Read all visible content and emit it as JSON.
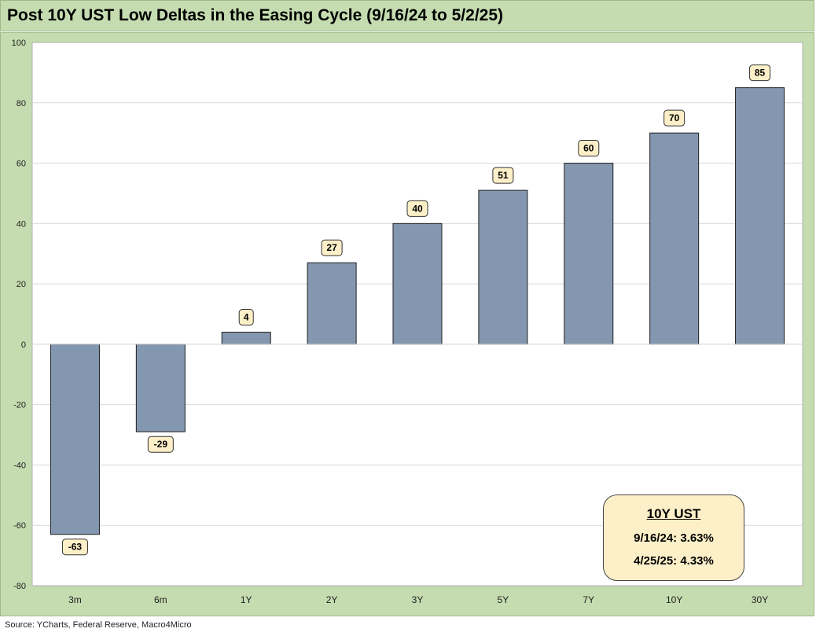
{
  "title": "Post 10Y UST Low Deltas in the Easing Cycle (9/16/24 to 5/2/25)",
  "source": "Source: YCharts, Federal Reserve, Macro4Micro",
  "annotation": {
    "title": "10Y UST",
    "line1": "9/16/24: 3.63%",
    "line2": "4/25/25: 4.33%"
  },
  "colors": {
    "background": "#c4dcb0",
    "plot_area": "#ffffff",
    "bar_fill": "#8497b0",
    "bar_stroke": "#1f1f1f",
    "label_box": "#fdf0c8"
  },
  "chart_data": {
    "type": "bar",
    "title": "Post 10Y UST Low Deltas in the Easing Cycle (9/16/24 to 5/2/25)",
    "categories": [
      "3m",
      "6m",
      "1Y",
      "2Y",
      "3Y",
      "5Y",
      "7Y",
      "10Y",
      "30Y"
    ],
    "values": [
      -63,
      -29,
      4,
      27,
      40,
      51,
      60,
      70,
      85
    ],
    "xlabel": "",
    "ylabel": "",
    "ylim": [
      -80,
      100
    ],
    "yticks": [
      100,
      80,
      60,
      40,
      20,
      0,
      -20,
      -40,
      -60,
      -80
    ],
    "grid": true,
    "data_labels": true
  }
}
